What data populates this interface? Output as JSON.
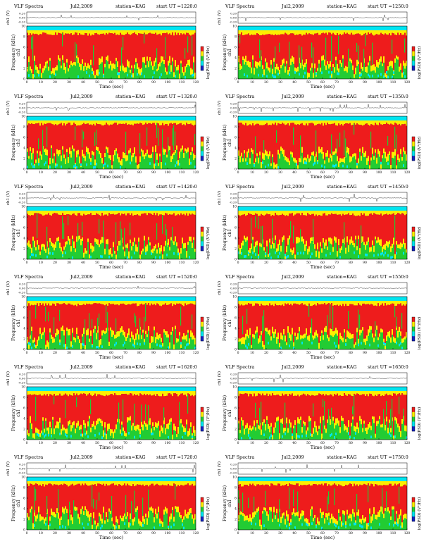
{
  "colors": {
    "blue": "#1020c0",
    "cyan": "#00e5f0",
    "green": "#22cc33",
    "yellow": "#ffee00",
    "red": "#ee1c1c",
    "trace": "#444444"
  },
  "labels": {
    "ch1_axis": "ch1 (V)",
    "freq_axis": "Frequency (kHz)",
    "ch1_overlay": "ch1",
    "time_axis": "Time (sec)",
    "colorbar": "log(PSD) (V²/Hz)",
    "ch1_ticks": [
      "0.20",
      "0.00",
      "-0.20"
    ],
    "freq_ticks": [
      "0",
      "2",
      "4",
      "6",
      "8",
      "10"
    ],
    "time_ticks": [
      "0",
      "10",
      "20",
      "30",
      "40",
      "50",
      "60",
      "70",
      "80",
      "90",
      "100",
      "110",
      "120"
    ]
  },
  "chart_data": [
    {
      "type": "heatmap",
      "title": "VLF Spectra",
      "date": "Jul2,2009",
      "station": "station=KAG",
      "ut": "start UT =1220:0",
      "xlabel": "Time (sec)",
      "ylabel": "Frequency (kHz)",
      "xlim": [
        0,
        120
      ],
      "ylim": [
        0,
        10
      ],
      "ch1_ylim": [
        -0.2,
        0.2
      ],
      "colorbar_label": "log(PSD) (V²/Hz)"
    },
    {
      "type": "heatmap",
      "title": "VLF Spectra",
      "date": "Jul2,2009",
      "station": "station=KAG",
      "ut": "start UT =1250:0",
      "xlabel": "Time (sec)",
      "ylabel": "Frequency (kHz)",
      "xlim": [
        0,
        120
      ],
      "ylim": [
        0,
        10
      ],
      "ch1_ylim": [
        -0.2,
        0.2
      ],
      "colorbar_label": "log(PSD) (V²/Hz)"
    },
    {
      "type": "heatmap",
      "title": "VLF Spectra",
      "date": "Jul2,2009",
      "station": "station=KAG",
      "ut": "start UT =1320:0",
      "xlabel": "Time (sec)",
      "ylabel": "Frequency (kHz)",
      "xlim": [
        0,
        120
      ],
      "ylim": [
        0,
        10
      ],
      "ch1_ylim": [
        -0.2,
        0.2
      ],
      "colorbar_label": "log(PSD) (V²/Hz)"
    },
    {
      "type": "heatmap",
      "title": "VLF Spectra",
      "date": "Jul2,2009",
      "station": "station=KAG",
      "ut": "start UT =1350:0",
      "xlabel": "Time (sec)",
      "ylabel": "Frequency (kHz)",
      "xlim": [
        0,
        120
      ],
      "ylim": [
        0,
        10
      ],
      "ch1_ylim": [
        -0.2,
        0.2
      ],
      "colorbar_label": "log(PSD) (V²/Hz)"
    },
    {
      "type": "heatmap",
      "title": "VLF Spectra",
      "date": "Jul2,2009",
      "station": "station=KAG",
      "ut": "start UT =1420:0",
      "xlabel": "Time (sec)",
      "ylabel": "Frequency (kHz)",
      "xlim": [
        0,
        120
      ],
      "ylim": [
        0,
        10
      ],
      "ch1_ylim": [
        -0.2,
        0.2
      ],
      "colorbar_label": "log(PSD) (V²/Hz)"
    },
    {
      "type": "heatmap",
      "title": "VLF Spectra",
      "date": "Jul2,2009",
      "station": "station=KAG",
      "ut": "start UT =1450:0",
      "xlabel": "Time (sec)",
      "ylabel": "Frequency (kHz)",
      "xlim": [
        0,
        120
      ],
      "ylim": [
        0,
        10
      ],
      "ch1_ylim": [
        -0.2,
        0.2
      ],
      "colorbar_label": "log(PSD) (V²/Hz)"
    },
    {
      "type": "heatmap",
      "title": "VLF Spectra",
      "date": "Jul2,2009",
      "station": "station=KAG",
      "ut": "start UT =1520:0",
      "xlabel": "Time (sec)",
      "ylabel": "Frequency (kHz)",
      "xlim": [
        0,
        120
      ],
      "ylim": [
        0,
        10
      ],
      "ch1_ylim": [
        -0.2,
        0.2
      ],
      "colorbar_label": "log(PSD) (V²/Hz)"
    },
    {
      "type": "heatmap",
      "title": "VLF Spectra",
      "date": "Jul2,2009",
      "station": "station=KAG",
      "ut": "start UT =1550:0",
      "xlabel": "Time (sec)",
      "ylabel": "Frequency (kHz)",
      "xlim": [
        0,
        120
      ],
      "ylim": [
        0,
        10
      ],
      "ch1_ylim": [
        -0.2,
        0.2
      ],
      "colorbar_label": "log(PSD) (V²/Hz)"
    },
    {
      "type": "heatmap",
      "title": "VLF Spectra",
      "date": "Jul2,2009",
      "station": "station=KAG",
      "ut": "start UT =1620:0",
      "xlabel": "Time (sec)",
      "ylabel": "Frequency (kHz)",
      "xlim": [
        0,
        120
      ],
      "ylim": [
        0,
        10
      ],
      "ch1_ylim": [
        -0.2,
        0.2
      ],
      "colorbar_label": "log(PSD) (V²/Hz)"
    },
    {
      "type": "heatmap",
      "title": "VLF Spectra",
      "date": "Jul2,2009",
      "station": "station=KAG",
      "ut": "start UT =1650:0",
      "xlabel": "Time (sec)",
      "ylabel": "Frequency (kHz)",
      "xlim": [
        0,
        120
      ],
      "ylim": [
        0,
        10
      ],
      "ch1_ylim": [
        -0.2,
        0.2
      ],
      "colorbar_label": "log(PSD) (V²/Hz)"
    },
    {
      "type": "heatmap",
      "title": "VLF Spectra",
      "date": "Jul2,2009",
      "station": "station=KAG",
      "ut": "start UT =1720:0",
      "xlabel": "Time (sec)",
      "ylabel": "Frequency (kHz)",
      "xlim": [
        0,
        120
      ],
      "ylim": [
        0,
        10
      ],
      "ch1_ylim": [
        -0.2,
        0.2
      ],
      "colorbar_label": "log(PSD) (V²/Hz)"
    },
    {
      "type": "heatmap",
      "title": "VLF Spectra",
      "date": "Jul2,2009",
      "station": "station=KAG",
      "ut": "start UT =1750:0",
      "xlabel": "Time (sec)",
      "ylabel": "Frequency (kHz)",
      "xlim": [
        0,
        120
      ],
      "ylim": [
        0,
        10
      ],
      "ch1_ylim": [
        -0.2,
        0.2
      ],
      "colorbar_label": "log(PSD) (V²/Hz)"
    }
  ]
}
